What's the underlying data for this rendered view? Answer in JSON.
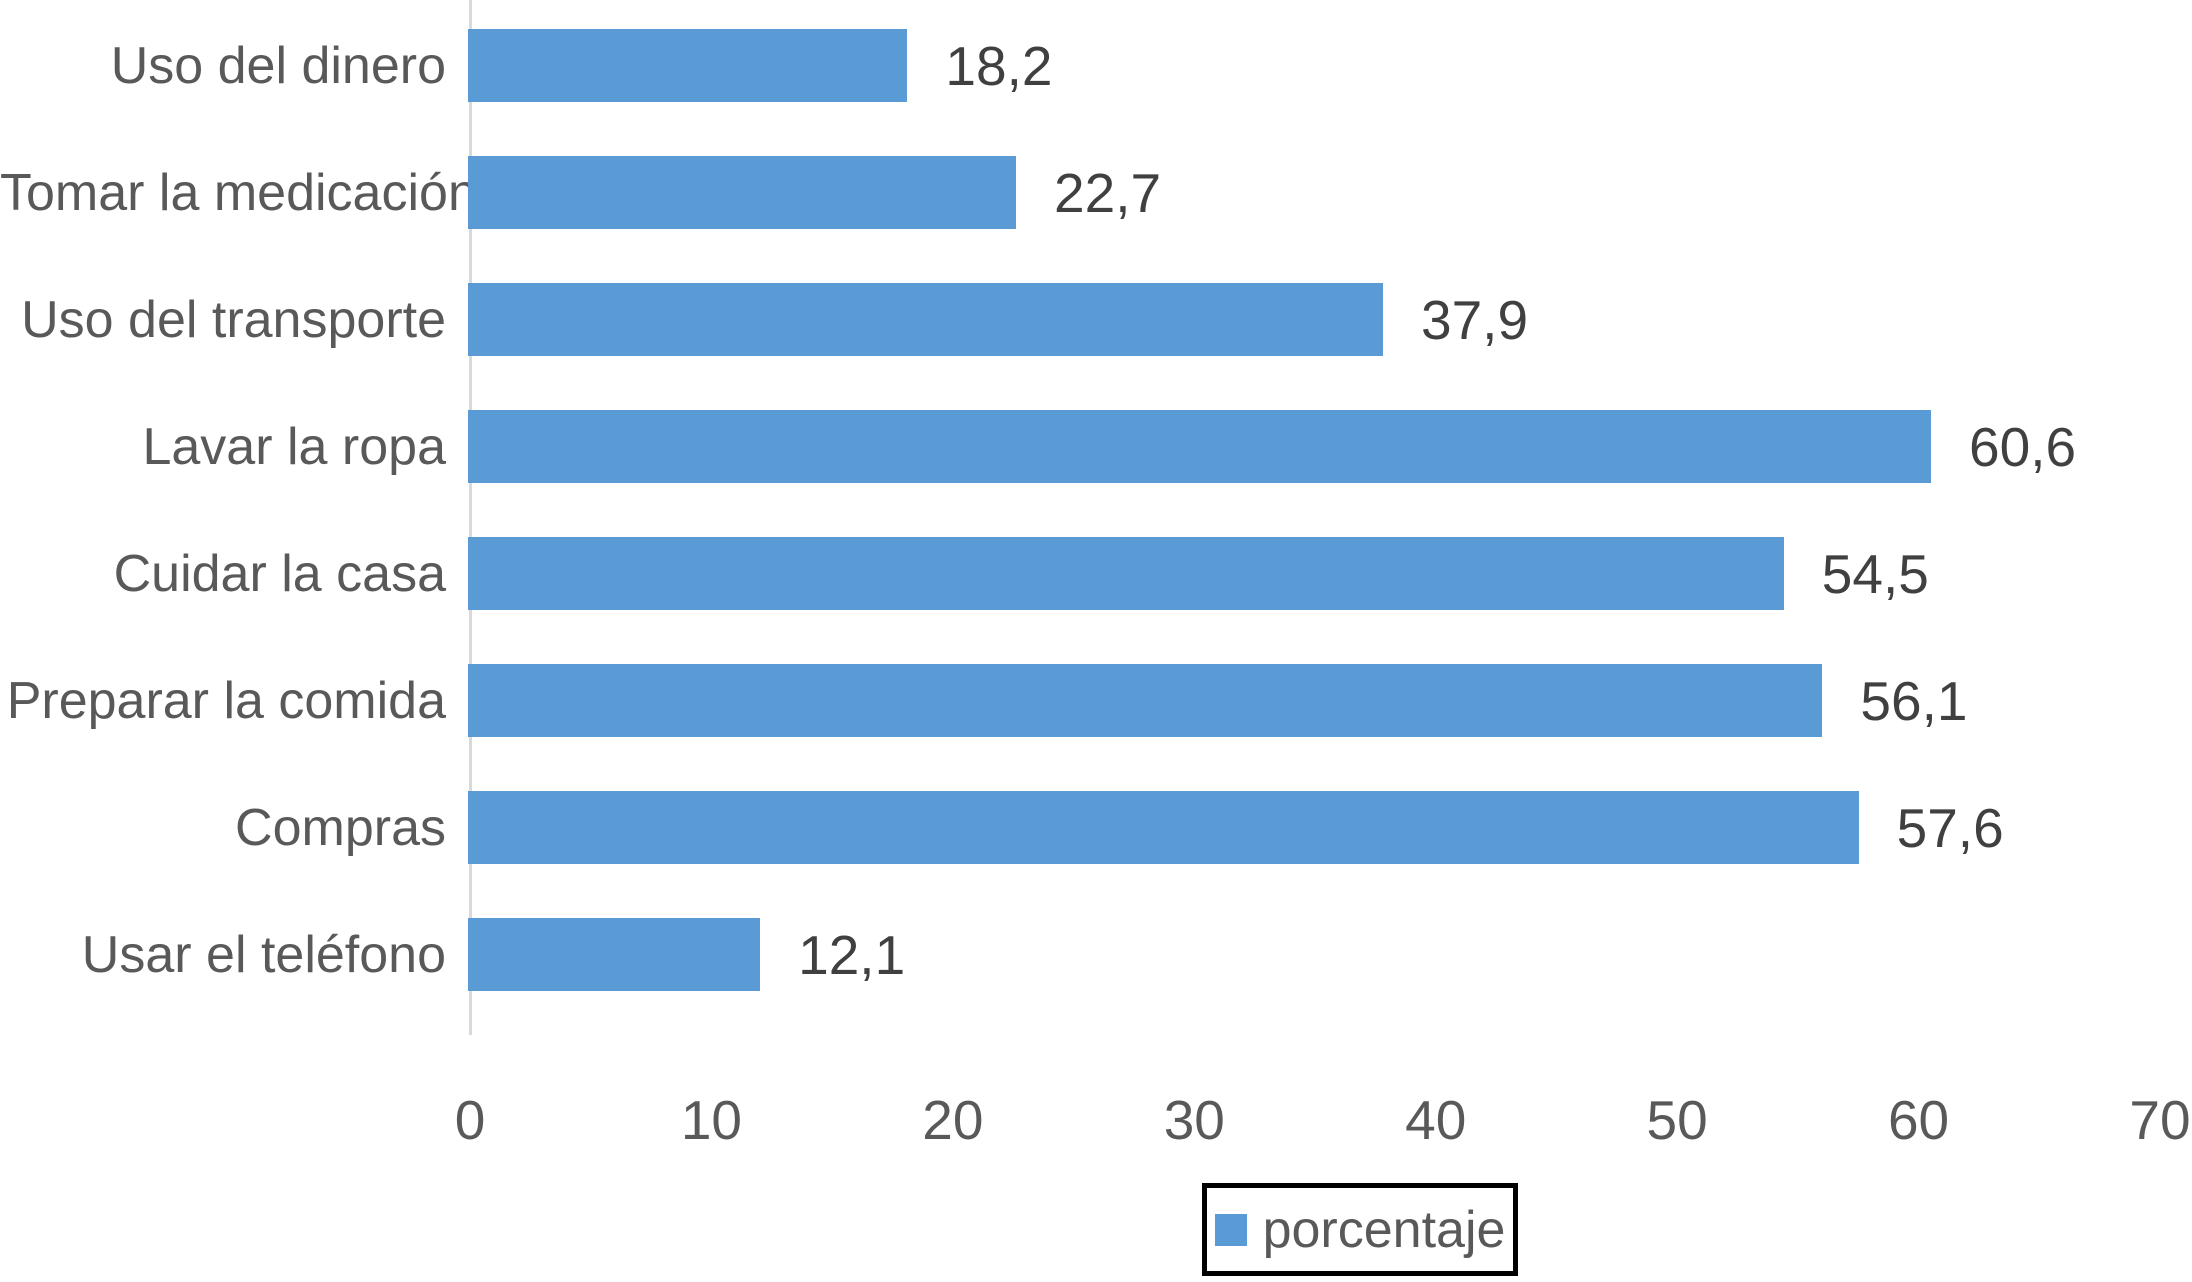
{
  "chart_data": {
    "type": "bar",
    "orientation": "horizontal",
    "categories": [
      "Uso del dinero",
      "Tomar la medicación",
      "Uso del transporte",
      "Lavar la ropa",
      "Cuidar la casa",
      "Preparar la comida",
      "Compras",
      "Usar el teléfono"
    ],
    "values": [
      18.2,
      22.7,
      37.9,
      60.6,
      54.5,
      56.1,
      57.6,
      12.1
    ],
    "value_labels": [
      "18,2",
      "22,7",
      "37,9",
      "60,6",
      "54,5",
      "56,1",
      "57,6",
      "12,1"
    ],
    "series": [
      {
        "name": "porcentaje",
        "values": [
          18.2,
          22.7,
          37.9,
          60.6,
          54.5,
          56.1,
          57.6,
          12.1
        ]
      }
    ],
    "title": "",
    "xlabel": "",
    "ylabel": "",
    "xlim": [
      0,
      70
    ],
    "x_ticks": [
      "0",
      "10",
      "20",
      "30",
      "40",
      "50",
      "60",
      "70"
    ],
    "grid": false,
    "legend_position": "bottom",
    "colors": {
      "bar": "#5B9BD5",
      "axis_line": "#D9D9D9",
      "category_label": "#595959",
      "value_label": "#404040",
      "tick_label": "#595959",
      "legend_border": "#000000"
    }
  },
  "legend": {
    "label": "porcentaje"
  }
}
